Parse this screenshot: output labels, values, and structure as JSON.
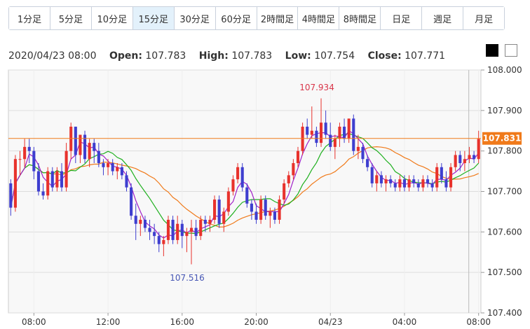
{
  "timeframe_tabs": [
    {
      "label": "1分足",
      "active": false
    },
    {
      "label": "5分足",
      "active": false
    },
    {
      "label": "10分足",
      "active": false
    },
    {
      "label": "15分足",
      "active": true
    },
    {
      "label": "30分足",
      "active": false
    },
    {
      "label": "60分足",
      "active": false
    },
    {
      "label": "2時間足",
      "active": false
    },
    {
      "label": "4時間足",
      "active": false
    },
    {
      "label": "8時間足",
      "active": false
    },
    {
      "label": "日足",
      "active": false
    },
    {
      "label": "週足",
      "active": false
    },
    {
      "label": "月足",
      "active": false
    }
  ],
  "ohlc": {
    "datetime": "2020/04/23 08:00",
    "open_label": "Open:",
    "open": "107.783",
    "high_label": "High:",
    "high": "107.783",
    "low_label": "Low:",
    "low": "107.754",
    "close_label": "Close:",
    "close": "107.771"
  },
  "theme_toggle": {
    "dark_color": "#000000",
    "light_color": "#ffffff"
  },
  "colors": {
    "up": "#e8322c",
    "down": "#3e3ecf",
    "ma_fast": "#a020c8",
    "ma_mid": "#1fb01f",
    "ma_slow": "#f07a1a",
    "price_line": "#f07a1a",
    "high_label": "#d9364a",
    "low_label": "#4656b4"
  },
  "chart_data": {
    "type": "candlestick",
    "interval": "15分足",
    "title": "",
    "xlabel": "",
    "ylabel": "",
    "ylim": [
      107.4,
      108.0
    ],
    "y_ticks": [
      "108.000",
      "107.900",
      "107.800",
      "107.700",
      "107.600",
      "107.500",
      "107.400"
    ],
    "x_ticks": [
      {
        "label": "08:00",
        "index": 5
      },
      {
        "label": "12:00",
        "index": 21
      },
      {
        "label": "16:00",
        "index": 37
      },
      {
        "label": "20:00",
        "index": 53
      },
      {
        "label": "04/23",
        "index": 69
      },
      {
        "label": "04:00",
        "index": 85
      },
      {
        "label": "08:00",
        "index": 101
      }
    ],
    "current_price": "107.831",
    "annotations": [
      {
        "text": "107.934",
        "index": 67,
        "value": 107.934,
        "kind": "high"
      },
      {
        "text": "107.516",
        "index": 39,
        "value": 107.516,
        "kind": "low"
      }
    ],
    "moving_averages": [
      "ma_fast",
      "ma_mid",
      "ma_slow"
    ],
    "grid": true,
    "candles": [
      [
        107.72,
        107.73,
        107.64,
        107.66
      ],
      [
        107.66,
        107.79,
        107.65,
        107.78
      ],
      [
        107.78,
        107.8,
        107.74,
        107.78
      ],
      [
        107.78,
        107.83,
        107.76,
        107.81
      ],
      [
        107.81,
        107.83,
        107.77,
        107.8
      ],
      [
        107.8,
        107.81,
        107.73,
        107.75
      ],
      [
        107.75,
        107.77,
        107.69,
        107.7
      ],
      [
        107.7,
        107.72,
        107.68,
        107.69
      ],
      [
        107.69,
        107.76,
        107.68,
        107.75
      ],
      [
        107.75,
        107.76,
        107.7,
        107.71
      ],
      [
        107.71,
        107.76,
        107.7,
        107.75
      ],
      [
        107.75,
        107.77,
        107.7,
        107.71
      ],
      [
        107.71,
        107.82,
        107.7,
        107.8
      ],
      [
        107.8,
        107.87,
        107.78,
        107.86
      ],
      [
        107.86,
        107.86,
        107.77,
        107.79
      ],
      [
        107.79,
        107.84,
        107.77,
        107.84
      ],
      [
        107.84,
        107.85,
        107.77,
        107.78
      ],
      [
        107.78,
        107.83,
        107.76,
        107.82
      ],
      [
        107.82,
        107.83,
        107.77,
        107.8
      ],
      [
        107.8,
        107.82,
        107.76,
        107.77
      ],
      [
        107.77,
        107.78,
        107.74,
        107.76
      ],
      [
        107.76,
        107.78,
        107.74,
        107.77
      ],
      [
        107.77,
        107.78,
        107.74,
        107.75
      ],
      [
        107.75,
        107.77,
        107.73,
        107.76
      ],
      [
        107.76,
        107.77,
        107.73,
        107.74
      ],
      [
        107.74,
        107.75,
        107.7,
        107.71
      ],
      [
        107.71,
        107.72,
        107.63,
        107.64
      ],
      [
        107.64,
        107.67,
        107.58,
        107.62
      ],
      [
        107.62,
        107.64,
        107.59,
        107.63
      ],
      [
        107.63,
        107.64,
        107.6,
        107.61
      ],
      [
        107.61,
        107.63,
        107.58,
        107.6
      ],
      [
        107.6,
        107.62,
        107.57,
        107.59
      ],
      [
        107.59,
        107.6,
        107.55,
        107.57
      ],
      [
        107.57,
        107.59,
        107.54,
        107.58
      ],
      [
        107.58,
        107.64,
        107.57,
        107.63
      ],
      [
        107.63,
        107.64,
        107.57,
        107.58
      ],
      [
        107.58,
        107.64,
        107.57,
        107.62
      ],
      [
        107.62,
        107.63,
        107.56,
        107.59
      ],
      [
        107.59,
        107.61,
        107.55,
        107.6
      ],
      [
        107.6,
        107.63,
        107.52,
        107.61
      ],
      [
        107.61,
        107.63,
        107.58,
        107.59
      ],
      [
        107.59,
        107.64,
        107.58,
        107.63
      ],
      [
        107.63,
        107.64,
        107.6,
        107.62
      ],
      [
        107.62,
        107.64,
        107.6,
        107.63
      ],
      [
        107.63,
        107.69,
        107.62,
        107.68
      ],
      [
        107.68,
        107.69,
        107.61,
        107.62
      ],
      [
        107.62,
        107.66,
        107.6,
        107.65
      ],
      [
        107.65,
        107.71,
        107.64,
        107.7
      ],
      [
        107.7,
        107.74,
        107.69,
        107.73
      ],
      [
        107.73,
        107.77,
        107.72,
        107.76
      ],
      [
        107.76,
        107.77,
        107.7,
        107.71
      ],
      [
        107.71,
        107.72,
        107.66,
        107.67
      ],
      [
        107.67,
        107.68,
        107.63,
        107.65
      ],
      [
        107.65,
        107.67,
        107.62,
        107.63
      ],
      [
        107.63,
        107.69,
        107.62,
        107.68
      ],
      [
        107.68,
        107.69,
        107.63,
        107.64
      ],
      [
        107.64,
        107.66,
        107.61,
        107.65
      ],
      [
        107.65,
        107.66,
        107.62,
        107.63
      ],
      [
        107.63,
        107.69,
        107.62,
        107.68
      ],
      [
        107.68,
        107.73,
        107.67,
        107.72
      ],
      [
        107.72,
        107.75,
        107.71,
        107.74
      ],
      [
        107.74,
        107.78,
        107.73,
        107.77
      ],
      [
        107.77,
        107.81,
        107.76,
        107.8
      ],
      [
        107.8,
        107.87,
        107.79,
        107.86
      ],
      [
        107.86,
        107.88,
        107.83,
        107.84
      ],
      [
        107.84,
        107.91,
        107.83,
        107.85
      ],
      [
        107.85,
        107.86,
        107.81,
        107.82
      ],
      [
        107.82,
        107.93,
        107.81,
        107.87
      ],
      [
        107.87,
        107.9,
        107.83,
        107.84
      ],
      [
        107.84,
        107.87,
        107.8,
        107.81
      ],
      [
        107.81,
        107.84,
        107.78,
        107.83
      ],
      [
        107.83,
        107.87,
        107.81,
        107.86
      ],
      [
        107.86,
        107.88,
        107.82,
        107.83
      ],
      [
        107.83,
        107.88,
        107.82,
        107.88
      ],
      [
        107.88,
        107.89,
        107.79,
        107.8
      ],
      [
        107.8,
        107.84,
        107.78,
        107.81
      ],
      [
        107.81,
        107.82,
        107.77,
        107.78
      ],
      [
        107.78,
        107.79,
        107.75,
        107.76
      ],
      [
        107.76,
        107.77,
        107.71,
        107.72
      ],
      [
        107.72,
        107.75,
        107.7,
        107.74
      ],
      [
        107.74,
        107.75,
        107.71,
        107.72
      ],
      [
        107.72,
        107.74,
        107.7,
        107.73
      ],
      [
        107.73,
        107.74,
        107.71,
        107.72
      ],
      [
        107.72,
        107.73,
        107.7,
        107.71
      ],
      [
        107.71,
        107.74,
        107.7,
        107.73
      ],
      [
        107.73,
        107.74,
        107.7,
        107.71
      ],
      [
        107.71,
        107.74,
        107.7,
        107.73
      ],
      [
        107.73,
        107.74,
        107.71,
        107.72
      ],
      [
        107.72,
        107.73,
        107.7,
        107.71
      ],
      [
        107.71,
        107.74,
        107.7,
        107.73
      ],
      [
        107.73,
        107.74,
        107.71,
        107.72
      ],
      [
        107.72,
        107.73,
        107.7,
        107.71
      ],
      [
        107.71,
        107.77,
        107.7,
        107.76
      ],
      [
        107.76,
        107.77,
        107.72,
        107.73
      ],
      [
        107.73,
        107.75,
        107.7,
        107.71
      ],
      [
        107.71,
        107.77,
        107.7,
        107.76
      ],
      [
        107.76,
        107.8,
        107.75,
        107.79
      ],
      [
        107.79,
        107.8,
        107.75,
        107.77
      ],
      [
        107.77,
        107.8,
        107.75,
        107.78
      ],
      [
        107.78,
        107.81,
        107.77,
        107.79
      ],
      [
        107.79,
        107.8,
        107.77,
        107.78
      ],
      [
        107.78,
        107.85,
        107.77,
        107.83
      ]
    ]
  }
}
